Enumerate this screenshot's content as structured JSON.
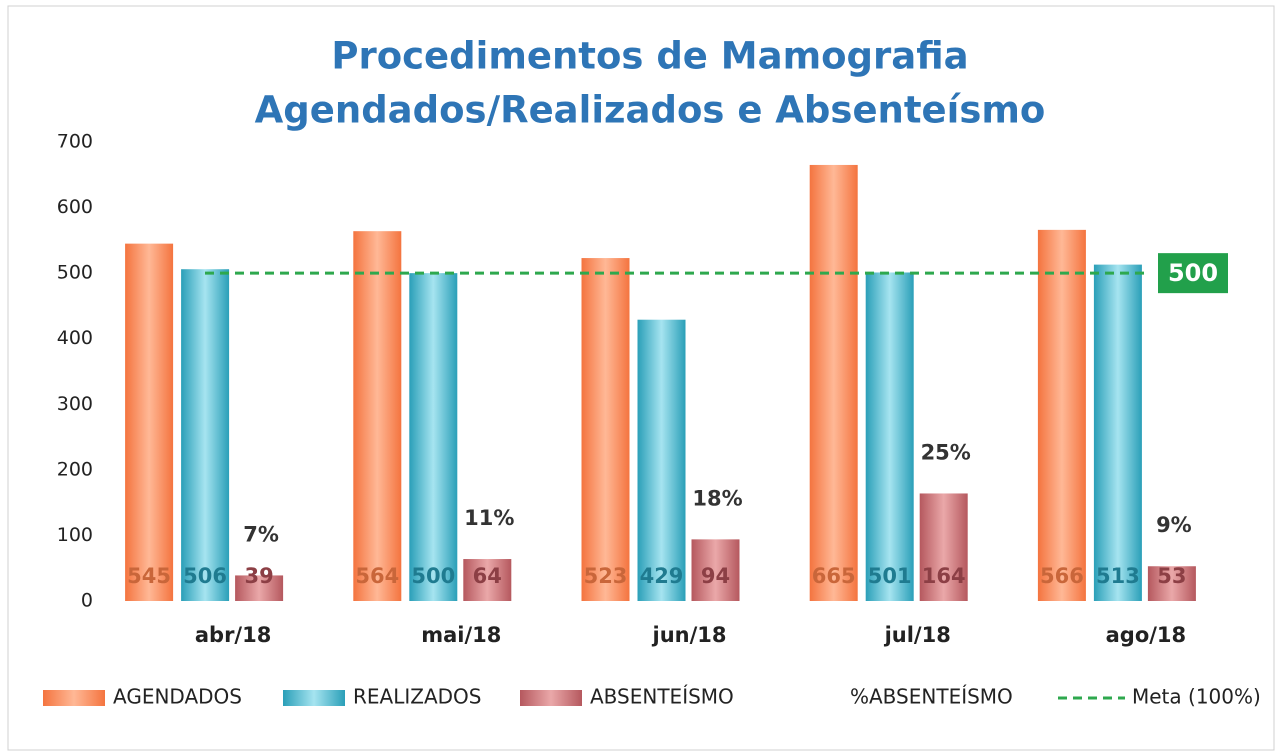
{
  "chart_data": {
    "type": "bar",
    "title": [
      "Procedimentos de Mamografia",
      "Agendados/Realizados e Absenteísmo"
    ],
    "categories": [
      "abr/18",
      "mai/18",
      "jun/18",
      "jul/18",
      "ago/18"
    ],
    "series": [
      {
        "name": "AGENDADOS",
        "color": "#f4743f",
        "values": [
          545,
          564,
          523,
          665,
          566
        ]
      },
      {
        "name": "REALIZADOS",
        "color": "#2a9fb8",
        "values": [
          506,
          500,
          429,
          501,
          513
        ]
      },
      {
        "name": "ABSENTEÍSMO",
        "color": "#b5585e",
        "values": [
          39,
          64,
          94,
          164,
          53
        ]
      }
    ],
    "percent_series": {
      "name": "%ABSENTEÍSMO",
      "values": [
        7,
        11,
        18,
        25,
        9
      ],
      "value_labels": [
        "7%",
        "11%",
        "18%",
        "25%",
        "9%"
      ]
    },
    "target": {
      "name": "Meta (100%)",
      "value": 500,
      "color": "#2ea84e"
    },
    "ylim": [
      0,
      700
    ],
    "yticks": [
      0,
      100,
      200,
      300,
      400,
      500,
      600,
      700
    ],
    "grid": false
  }
}
